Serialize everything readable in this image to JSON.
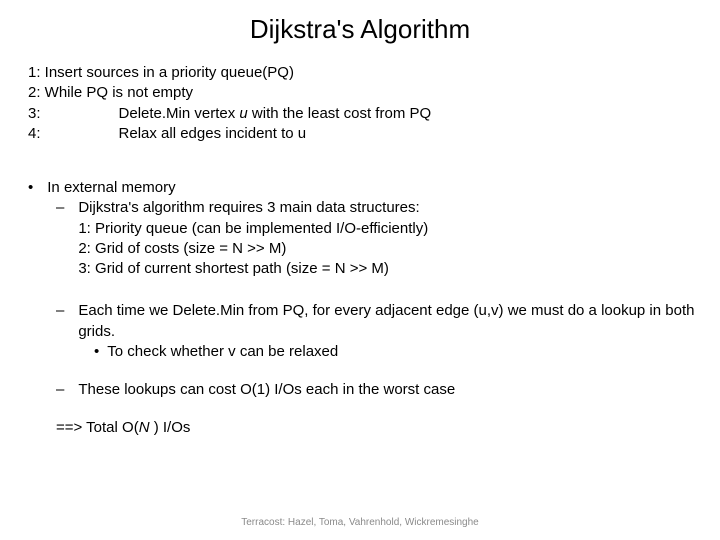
{
  "title": "Dijkstra's Algorithm",
  "algo": {
    "l1": "1: Insert sources in a priority queue(PQ)",
    "l2": "2: While PQ is not empty",
    "l3a": "3:",
    "l3b_pre": "Delete.Min vertex ",
    "l3b_var": "u",
    "l3b_post": " with the least cost from PQ",
    "l4a": "4:",
    "l4b": "Relax all edges incident  to u"
  },
  "body": {
    "b0": "In external memory",
    "b1": "Dijkstra's algorithm requires 3 main data structures:",
    "b1_1": "1: Priority queue (can be implemented I/O-efficiently)",
    "b1_2": "2: Grid of costs (size = N >> M)",
    "b1_3": "3: Grid of current shortest path (size = N >> M)",
    "b2": "Each time we Delete.Min from PQ, for every adjacent edge (u,v) we must do a lookup in both grids.",
    "b2_1": "To check whether v can be relaxed",
    "b3": "These lookups can cost O(1) I/Os each in the worst case",
    "concl_pre": "==> Total O(",
    "concl_var": "N",
    "concl_post": " ) I/Os"
  },
  "footer": "Terracost: Hazel, Toma, Vahrenhold, Wickremesinghe",
  "bullets": {
    "dot": "•",
    "dash": "–"
  }
}
